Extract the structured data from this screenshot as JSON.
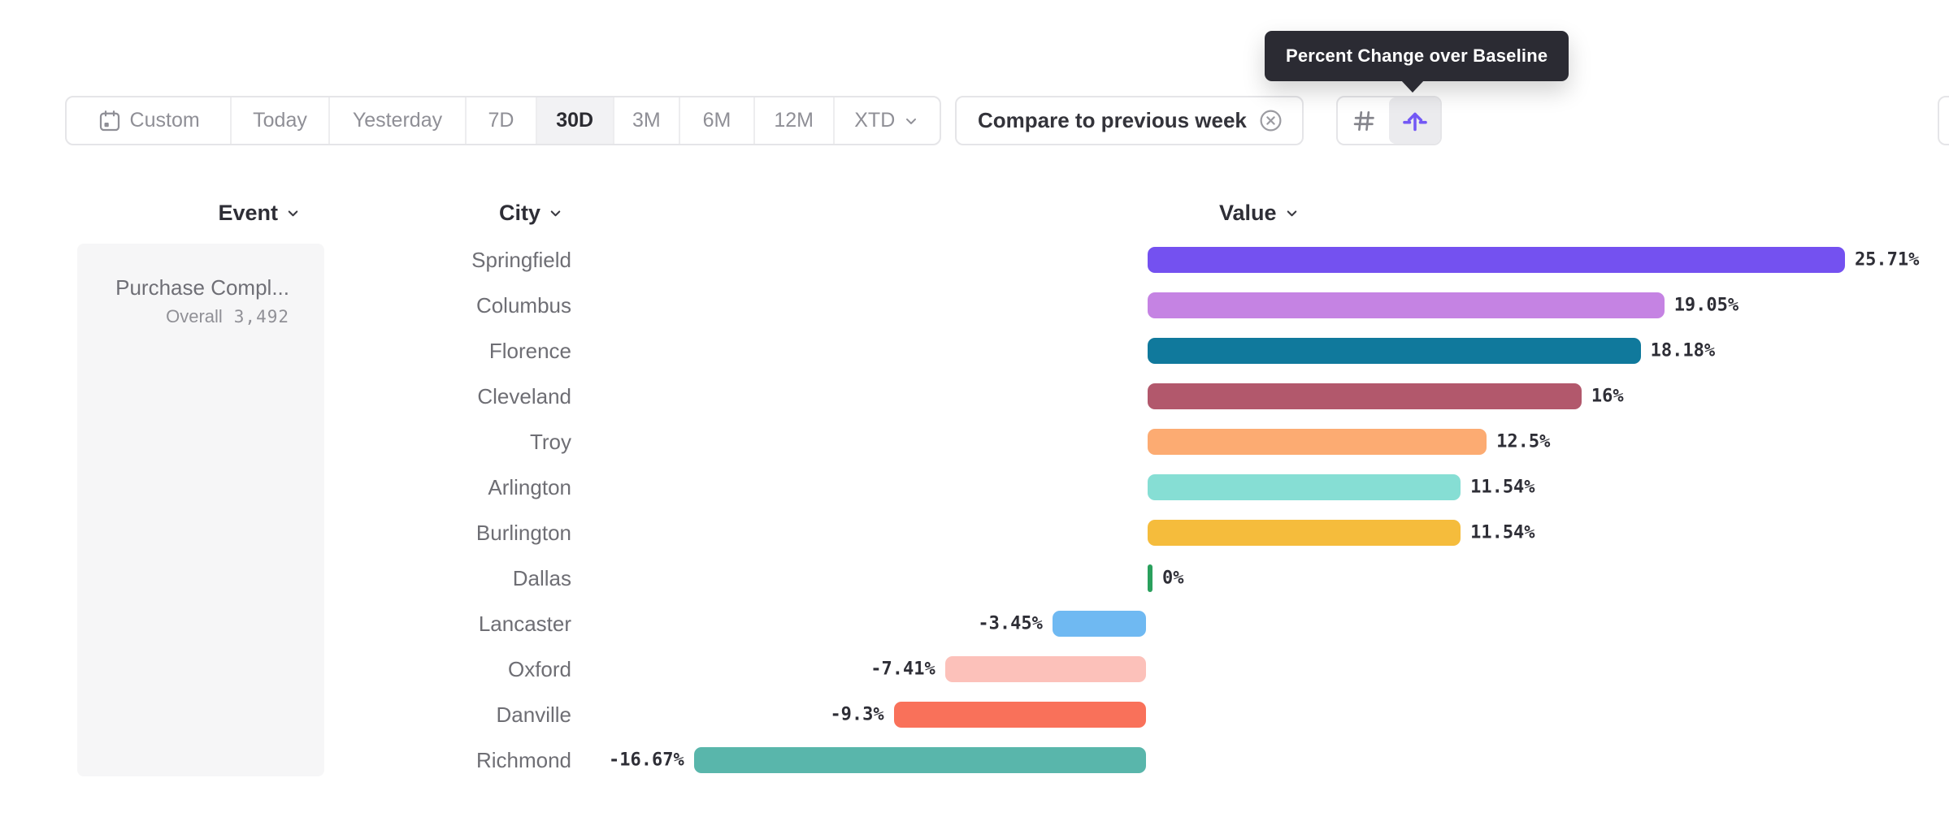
{
  "tooltip": {
    "text": "Percent Change over Baseline",
    "bg": "#2b2b33"
  },
  "toolbar": {
    "date_ranges": [
      {
        "label": "Custom",
        "icon": "calendar-icon",
        "selected": false
      },
      {
        "label": "Today",
        "selected": false
      },
      {
        "label": "Yesterday",
        "selected": false
      },
      {
        "label": "7D",
        "selected": false
      },
      {
        "label": "30D",
        "selected": true
      },
      {
        "label": "3M",
        "selected": false
      },
      {
        "label": "6M",
        "selected": false
      },
      {
        "label": "12M",
        "selected": false
      },
      {
        "label": "XTD",
        "icon": "chevron-down-icon",
        "selected": false
      }
    ],
    "compare_button": {
      "label": "Compare to previous week",
      "icon": "circle-x-icon"
    },
    "view_toggle": [
      {
        "name": "absolute-values",
        "icon": "hash-icon",
        "selected": false
      },
      {
        "name": "percent-change-over-baseline",
        "icon": "baseline-arrow-icon",
        "selected": true
      }
    ]
  },
  "columns": {
    "event": "Event",
    "city": "City",
    "value": "Value"
  },
  "event_panel": {
    "event_name": "Purchase Compl...",
    "overall_label": "Overall",
    "overall_value": "3,492"
  },
  "colors": {
    "accent_purple": "#7358f5",
    "baseline_tick_green": "#2aa05d",
    "selected_segment_bg": "#f2f2f4",
    "tooltip_bg": "#2b2b33"
  },
  "chart_data": {
    "type": "bar",
    "orientation": "horizontal",
    "title": "Percent Change over Baseline",
    "unit": "%",
    "baseline": 0,
    "value_range": [
      -16.67,
      25.71
    ],
    "categories": [
      "Springfield",
      "Columbus",
      "Florence",
      "Cleveland",
      "Troy",
      "Arlington",
      "Burlington",
      "Dallas",
      "Lancaster",
      "Oxford",
      "Danville",
      "Richmond"
    ],
    "values": [
      25.71,
      19.05,
      18.18,
      16,
      12.5,
      11.54,
      11.54,
      0,
      -3.45,
      -7.41,
      -9.3,
      -16.67
    ],
    "labels": [
      "25.71%",
      "19.05%",
      "18.18%",
      "16%",
      "12.5%",
      "11.54%",
      "11.54%",
      "0%",
      "-3.45%",
      "-7.41%",
      "-9.3%",
      "-16.67%"
    ],
    "bar_colors": [
      "#7451f0",
      "#c583e3",
      "#10799c",
      "#b2586c",
      "#fcab72",
      "#86ded4",
      "#f5bc3c",
      "#2aa05d",
      "#6fb9f2",
      "#fcc1ba",
      "#f9715a",
      "#59b6ab"
    ]
  }
}
